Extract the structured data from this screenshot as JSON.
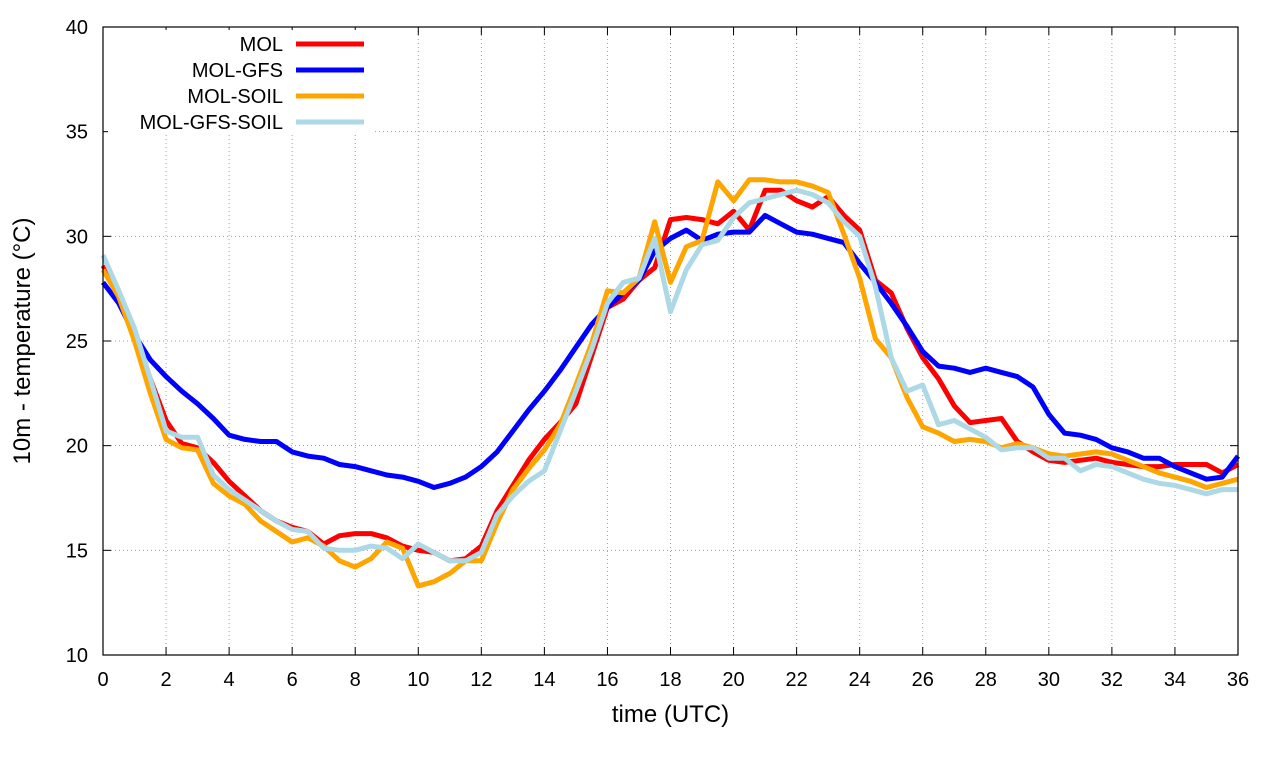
{
  "chart_data": {
    "type": "line",
    "title": "",
    "xlabel": "time (UTC)",
    "ylabel": "10m - temperature (°C)",
    "xlim": [
      0,
      36
    ],
    "ylim": [
      10,
      40
    ],
    "xticks": [
      0,
      2,
      4,
      6,
      8,
      10,
      12,
      14,
      16,
      18,
      20,
      22,
      24,
      26,
      28,
      30,
      32,
      34,
      36
    ],
    "yticks": [
      10,
      15,
      20,
      25,
      30,
      35,
      40
    ],
    "grid": true,
    "legend_position": "top-left",
    "series": [
      {
        "name": "MOL",
        "color": "#ff0000",
        "x": [
          0,
          0.5,
          1,
          1.5,
          2,
          2.5,
          3,
          3.5,
          4,
          4.5,
          5,
          5.5,
          6,
          6.5,
          7,
          7.5,
          8,
          8.5,
          9,
          9.5,
          10,
          10.5,
          11,
          11.5,
          12,
          12.5,
          13,
          13.5,
          14,
          14.5,
          15,
          15.5,
          16,
          16.5,
          17,
          17.5,
          18,
          18.5,
          19,
          19.5,
          20,
          20.5,
          21,
          21.5,
          22,
          22.5,
          23,
          23.5,
          24,
          24.5,
          25,
          25.5,
          26,
          26.5,
          27,
          27.5,
          28,
          28.5,
          29,
          29.5,
          30,
          30.5,
          31,
          31.5,
          32,
          32.5,
          33,
          33.5,
          34,
          34.5,
          35,
          35.5,
          36
        ],
        "y": [
          28.6,
          27.2,
          25.2,
          23.2,
          21.2,
          20.1,
          19.9,
          19.2,
          18.3,
          17.6,
          16.9,
          16.4,
          16.1,
          15.9,
          15.3,
          15.7,
          15.8,
          15.8,
          15.6,
          15.2,
          15.0,
          14.9,
          14.5,
          14.6,
          15.2,
          16.9,
          18.1,
          19.3,
          20.3,
          21.1,
          22.0,
          24.3,
          26.6,
          27.0,
          27.9,
          28.5,
          30.8,
          30.9,
          30.8,
          30.6,
          31.2,
          30.3,
          32.2,
          32.2,
          31.7,
          31.4,
          31.9,
          31.0,
          30.3,
          27.9,
          27.3,
          25.6,
          24.2,
          23.2,
          21.9,
          21.1,
          21.2,
          21.3,
          20.2,
          19.7,
          19.3,
          19.2,
          19.3,
          19.4,
          19.2,
          19.1,
          19.0,
          19.0,
          19.1,
          19.1,
          19.1,
          18.7,
          19.1
        ]
      },
      {
        "name": "MOL-GFS",
        "color": "#0000ff",
        "x": [
          0,
          0.5,
          1,
          1.5,
          2,
          2.5,
          3,
          3.5,
          4,
          4.5,
          5,
          5.5,
          6,
          6.5,
          7,
          7.5,
          8,
          8.5,
          9,
          9.5,
          10,
          10.5,
          11,
          11.5,
          12,
          12.5,
          13,
          13.5,
          14,
          14.5,
          15,
          15.5,
          16,
          16.5,
          17,
          17.5,
          18,
          18.5,
          19,
          19.5,
          20,
          20.5,
          21,
          21.5,
          22,
          22.5,
          23,
          23.5,
          24,
          24.5,
          25,
          25.5,
          26,
          26.5,
          27,
          27.5,
          28,
          28.5,
          29,
          29.5,
          30,
          30.5,
          31,
          31.5,
          32,
          32.5,
          33,
          33.5,
          34,
          34.5,
          35,
          35.5,
          36
        ],
        "y": [
          27.8,
          26.8,
          25.3,
          24.1,
          23.3,
          22.6,
          22.0,
          21.3,
          20.5,
          20.3,
          20.2,
          20.2,
          19.7,
          19.5,
          19.4,
          19.1,
          19.0,
          18.8,
          18.6,
          18.5,
          18.3,
          18.0,
          18.2,
          18.5,
          19.0,
          19.7,
          20.7,
          21.7,
          22.6,
          23.6,
          24.7,
          25.8,
          26.6,
          27.3,
          27.9,
          29.3,
          29.9,
          30.3,
          29.8,
          30.1,
          30.2,
          30.2,
          31.0,
          30.6,
          30.2,
          30.1,
          29.9,
          29.7,
          28.7,
          27.8,
          26.8,
          25.7,
          24.5,
          23.8,
          23.7,
          23.5,
          23.7,
          23.5,
          23.3,
          22.8,
          21.5,
          20.6,
          20.5,
          20.3,
          19.9,
          19.7,
          19.4,
          19.4,
          19.0,
          18.7,
          18.4,
          18.5,
          19.5
        ]
      },
      {
        "name": "MOL-SOIL",
        "color": "#ffa500",
        "x": [
          0,
          0.5,
          1,
          1.5,
          2,
          2.5,
          3,
          3.5,
          4,
          4.5,
          5,
          5.5,
          6,
          6.5,
          7,
          7.5,
          8,
          8.5,
          9,
          9.5,
          10,
          10.5,
          11,
          11.5,
          12,
          12.5,
          13,
          13.5,
          14,
          14.5,
          15,
          15.5,
          16,
          16.5,
          17,
          17.5,
          18,
          18.5,
          19,
          19.5,
          20,
          20.5,
          21,
          21.5,
          22,
          22.5,
          23,
          23.5,
          24,
          24.5,
          25,
          25.5,
          26,
          26.5,
          27,
          27.5,
          28,
          28.5,
          29,
          29.5,
          30,
          30.5,
          31,
          31.5,
          32,
          32.5,
          33,
          33.5,
          34,
          34.5,
          35,
          35.5,
          36
        ],
        "y": [
          28.4,
          27.1,
          25.0,
          22.5,
          20.3,
          19.9,
          19.8,
          18.2,
          17.6,
          17.2,
          16.4,
          15.9,
          15.4,
          15.6,
          15.2,
          14.5,
          14.2,
          14.6,
          15.4,
          15.1,
          13.3,
          13.5,
          13.9,
          14.5,
          14.5,
          16.3,
          17.9,
          18.9,
          19.8,
          21.0,
          22.9,
          24.9,
          27.4,
          27.3,
          28.0,
          30.7,
          27.8,
          29.5,
          29.8,
          32.6,
          31.7,
          32.7,
          32.7,
          32.6,
          32.6,
          32.4,
          32.1,
          30.1,
          28.0,
          25.1,
          24.2,
          22.3,
          20.9,
          20.6,
          20.2,
          20.3,
          20.2,
          19.9,
          20.1,
          19.9,
          19.6,
          19.5,
          19.6,
          19.7,
          19.6,
          19.3,
          19.0,
          18.7,
          18.5,
          18.3,
          18.0,
          18.2,
          18.4
        ]
      },
      {
        "name": "MOL-GFS-SOIL",
        "color": "#add8e6",
        "x": [
          0,
          0.5,
          1,
          1.5,
          2,
          2.5,
          3,
          3.5,
          4,
          4.5,
          5,
          5.5,
          6,
          6.5,
          7,
          7.5,
          8,
          8.5,
          9,
          9.5,
          10,
          10.5,
          11,
          11.5,
          12,
          12.5,
          13,
          13.5,
          14,
          14.5,
          15,
          15.5,
          16,
          16.5,
          17,
          17.5,
          18,
          18.5,
          19,
          19.5,
          20,
          20.5,
          21,
          21.5,
          22,
          22.5,
          23,
          23.5,
          24,
          24.5,
          25,
          25.5,
          26,
          26.5,
          27,
          27.5,
          28,
          28.5,
          29,
          29.5,
          30,
          30.5,
          31,
          31.5,
          32,
          32.5,
          33,
          33.5,
          34,
          34.5,
          35,
          35.5,
          36
        ],
        "y": [
          29.1,
          27.4,
          25.6,
          23.2,
          20.7,
          20.4,
          20.4,
          18.6,
          17.9,
          17.4,
          16.9,
          16.4,
          16.0,
          15.9,
          15.1,
          15.0,
          15.0,
          15.2,
          15.1,
          14.6,
          15.3,
          14.9,
          14.5,
          14.5,
          14.9,
          16.7,
          17.6,
          18.3,
          18.8,
          20.7,
          22.6,
          24.6,
          26.8,
          27.8,
          28.0,
          29.9,
          26.4,
          28.4,
          29.6,
          29.8,
          30.9,
          31.6,
          31.8,
          32.0,
          32.2,
          32.0,
          31.6,
          30.7,
          30.0,
          27.6,
          24.2,
          22.6,
          22.9,
          21.0,
          21.2,
          20.8,
          20.4,
          19.8,
          19.9,
          19.9,
          19.4,
          19.4,
          18.8,
          19.1,
          19.0,
          18.7,
          18.4,
          18.2,
          18.1,
          17.9,
          17.7,
          17.9,
          17.9
        ]
      }
    ]
  }
}
